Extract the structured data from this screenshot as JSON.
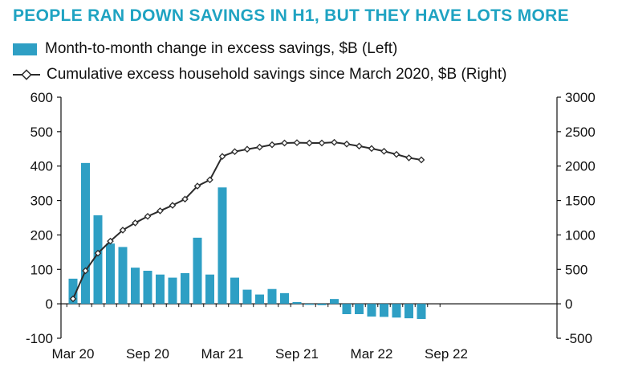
{
  "colors": {
    "title": "#1fa3c2",
    "bar": "#2e9fc4",
    "line": "#2b2b2b",
    "marker_fill": "#ffffff",
    "axis": "#111111"
  },
  "chart_data": {
    "type": "bar+line",
    "title": "PEOPLE RAN DOWN SAVINGS IN H1, BUT THEY HAVE LOTS MORE",
    "legend": [
      {
        "label": "Month-to-month change in excess savings, $B (Left)",
        "kind": "bar"
      },
      {
        "label": "Cumulative excess household savings since March 2020, $B (Right)",
        "kind": "line"
      }
    ],
    "x_tick_labels": [
      "Mar 20",
      "Sep 20",
      "Mar 21",
      "Sep 21",
      "Mar 22",
      "Sep 22"
    ],
    "months": [
      "2020-03",
      "2020-04",
      "2020-05",
      "2020-06",
      "2020-07",
      "2020-08",
      "2020-09",
      "2020-10",
      "2020-11",
      "2020-12",
      "2021-01",
      "2021-02",
      "2021-03",
      "2021-04",
      "2021-05",
      "2021-06",
      "2021-07",
      "2021-08",
      "2021-09",
      "2021-10",
      "2021-11",
      "2021-12",
      "2022-01",
      "2022-02",
      "2022-03",
      "2022-04",
      "2022-05",
      "2022-06",
      "2022-07",
      "2022-08"
    ],
    "left_axis": {
      "min": -100,
      "max": 600,
      "ticks": [
        -100,
        0,
        100,
        200,
        300,
        400,
        500,
        600
      ]
    },
    "right_axis": {
      "min": -500,
      "max": 3000,
      "ticks": [
        -500,
        0,
        500,
        1000,
        1500,
        2000,
        2500,
        3000
      ]
    },
    "series": [
      {
        "name": "Month-to-month change in excess savings, $B (Left)",
        "type": "bar",
        "axis": "left",
        "values": [
          73,
          409,
          257,
          175,
          165,
          105,
          96,
          85,
          76,
          89,
          192,
          85,
          338,
          76,
          41,
          27,
          43,
          31,
          5,
          -3,
          -4,
          14,
          -30,
          -30,
          -37,
          -38,
          -40,
          -42,
          -44,
          null
        ]
      },
      {
        "name": "Cumulative excess household savings since March 2020, $B (Right)",
        "type": "line",
        "axis": "right",
        "values": [
          73,
          480,
          735,
          910,
          1070,
          1175,
          1270,
          1350,
          1430,
          1520,
          1710,
          1800,
          2140,
          2210,
          2245,
          2275,
          2310,
          2335,
          2340,
          2335,
          2335,
          2345,
          2320,
          2290,
          2255,
          2215,
          2170,
          2120,
          2090,
          null
        ]
      }
    ],
    "grid": false
  }
}
